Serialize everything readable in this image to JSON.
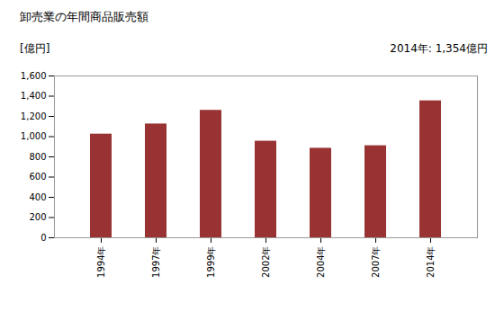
{
  "chart_data": {
    "type": "bar",
    "title": "卸売業の年間商品販売額",
    "y_label": "[億円]",
    "annotation": "2014年: 1,354億円",
    "categories": [
      "1994年",
      "1997年",
      "1999年",
      "2002年",
      "2004年",
      "2007年",
      "2014年"
    ],
    "values": [
      1025,
      1125,
      1260,
      955,
      885,
      910,
      1354
    ],
    "color": "#993333",
    "ylim": [
      0,
      1600
    ],
    "yticks": [
      0,
      200,
      400,
      600,
      800,
      {
        "value": 1000,
        "label": "1,000"
      },
      {
        "value": 1200,
        "label": "1,200"
      },
      {
        "value": 1400,
        "label": "1,400"
      },
      {
        "value": 1600,
        "label": "1,600"
      }
    ],
    "grid": false
  }
}
